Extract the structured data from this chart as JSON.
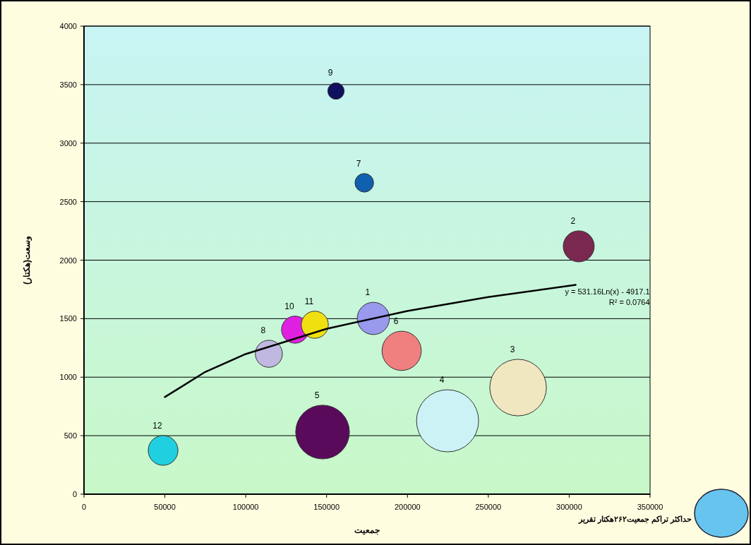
{
  "chart_data": {
    "type": "bubble",
    "xlabel": "جمعیت",
    "ylabel": "وسعت(هکتار)",
    "xlim": [
      0,
      350000
    ],
    "xticks": [
      0,
      50000,
      100000,
      150000,
      200000,
      250000,
      300000,
      350000
    ],
    "ylim": [
      0,
      4000
    ],
    "yticks": [
      0,
      500,
      1000,
      1500,
      2000,
      2500,
      3000,
      3500,
      4000
    ],
    "grid": "y",
    "legend": "bottom right",
    "series": [
      {
        "name": "حداکثر تراکم جمعیت۲۶۲هکتار تقریر",
        "color": "#66c4ee",
        "x": [
          178900,
          305900,
          268400,
          224800,
          147500,
          196400,
          173300,
          114300,
          155800,
          130500,
          142700,
          48900
        ],
        "values": [
          1502,
          2118,
          911,
          627,
          531,
          1225,
          2661,
          1200,
          3445,
          1406,
          1448,
          374
        ],
        "sizes": [
          0.27,
          0.25,
          0.83,
          1,
          0.75,
          0.4,
          0.09,
          0.19,
          0.07,
          0.19,
          0.19,
          0.23
        ],
        "colors": [
          "#9999ee",
          "#7a2850",
          "#f0e6c0",
          "#ccf2f6",
          "#5a0a5a",
          "#f08080",
          "#1060b0",
          "#c0b8e0",
          "#101060",
          "#e020e0",
          "#f0e010",
          "#20d0e0"
        ]
      },
      {
        "type": "line",
        "color": "#000000",
        "x": [
          50000,
          75000,
          100000,
          150000,
          200000,
          250000,
          304000
        ],
        "values": [
          830,
          1045,
          1198,
          1413,
          1566,
          1685,
          1789
        ]
      }
    ],
    "annotations": [
      "1",
      "2",
      "3",
      "4",
      "5",
      "6",
      "7",
      "8",
      "9",
      "10",
      "11",
      "12",
      "y = 531.16Ln(x) - 4917.1",
      "R² = 0.0764"
    ]
  }
}
